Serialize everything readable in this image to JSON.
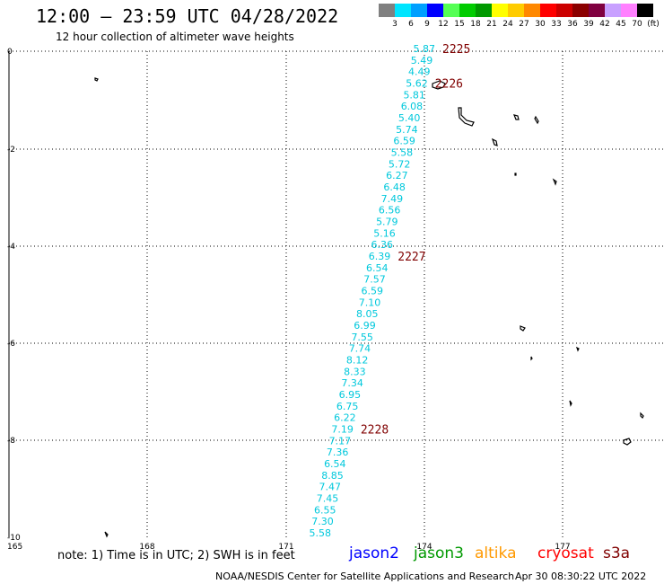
{
  "title": "12:00 — 23:59 UTC 04/28/2022",
  "subtitle": "12 hour collection of altimeter wave heights",
  "colorbar": {
    "unit": "(ft)",
    "bins": [
      {
        "label": "3",
        "color": "#808080"
      },
      {
        "label": "6",
        "color": "#00e5ff"
      },
      {
        "label": "9",
        "color": "#00a0ff"
      },
      {
        "label": "12",
        "color": "#0000ff"
      },
      {
        "label": "15",
        "color": "#55ff55"
      },
      {
        "label": "18",
        "color": "#00cc00"
      },
      {
        "label": "21",
        "color": "#009900"
      },
      {
        "label": "24",
        "color": "#ffff00"
      },
      {
        "label": "27",
        "color": "#ffcc00"
      },
      {
        "label": "30",
        "color": "#ff8800"
      },
      {
        "label": "33",
        "color": "#ff0000"
      },
      {
        "label": "36",
        "color": "#cc0000"
      },
      {
        "label": "39",
        "color": "#8b0000"
      },
      {
        "label": "42",
        "color": "#800040"
      },
      {
        "label": "45",
        "color": "#c8a0ff"
      },
      {
        "label": "70",
        "color": "#ff80ff"
      },
      {
        "label": "",
        "color": "#000000"
      }
    ]
  },
  "axes": {
    "lat_ticks": [
      "0",
      "-2",
      "-4",
      "-6",
      "-8",
      "-10"
    ],
    "lon_ticks": [
      "165",
      "168",
      "171",
      "174",
      "177"
    ]
  },
  "swh_color": "#00c8dc",
  "pass_color": "#800000",
  "swh_values": [
    "5.87",
    "5.49",
    "4.49",
    "5.62",
    "5.81",
    "6.08",
    "5.40",
    "5.74",
    "6.59",
    "5.58",
    "5.72",
    "6.27",
    "6.48",
    "7.49",
    "6.56",
    "5.79",
    "5.16",
    "6.36",
    "6.39",
    "6.54",
    "7.57",
    "6.59",
    "7.10",
    "8.05",
    "6.99",
    "7.55",
    "7.74",
    "8.12",
    "8.33",
    "7.34",
    "6.95",
    "6.75",
    "6.22",
    "7.19",
    "7.17",
    "7.36",
    "6.54",
    "8.85",
    "7.47",
    "7.45",
    "6.55",
    "7.30",
    "5.58"
  ],
  "passes": [
    {
      "label": "2225",
      "index": 0
    },
    {
      "label": "2226",
      "index": 3
    },
    {
      "label": "2227",
      "index": 18
    },
    {
      "label": "2228",
      "index": 33
    }
  ],
  "footer": {
    "note": "note: 1) Time is in UTC; 2) SWH is in feet",
    "missions": [
      {
        "name": "jason2",
        "color": "#0000ff"
      },
      {
        "name": "jason3",
        "color": "#009900"
      },
      {
        "name": "altika",
        "color": "#ff9900"
      },
      {
        "name": "cryosat",
        "color": "#ff0000"
      },
      {
        "name": "s3a",
        "color": "#800000"
      }
    ],
    "credit": "NOAA/NESDIS Center for Satellite Applications and Research",
    "timestamp": "Apr 30 08:30:22 UTC 2022"
  }
}
